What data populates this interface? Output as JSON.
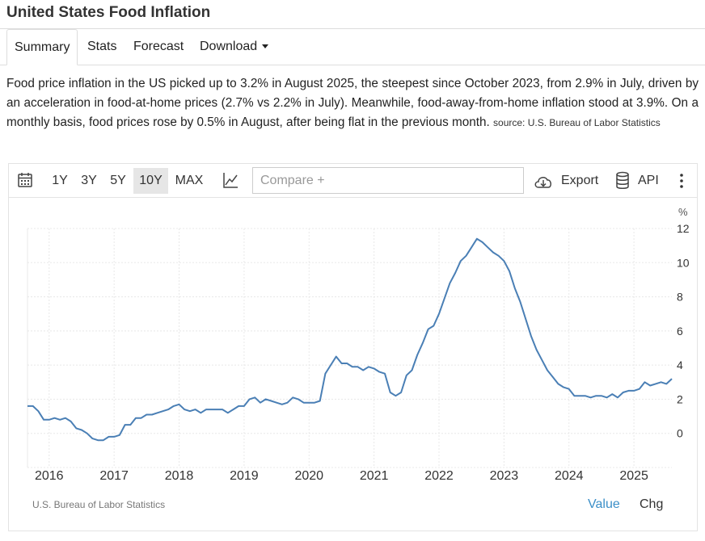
{
  "header": {
    "title": "United States Food Inflation"
  },
  "tabs": [
    {
      "label": "Summary"
    },
    {
      "label": "Stats"
    },
    {
      "label": "Forecast"
    },
    {
      "label": "Download"
    }
  ],
  "summary": {
    "text": "Food price inflation in the US picked up to 3.2% in August 2025, the steepest since October 2023, from 2.9% in July, driven by an acceleration in food-at-home prices (2.7% vs 2.2% in July). Meanwhile, food-away-from-home inflation stood at 3.9%. On a monthly basis, food prices rose by 0.5% in August, after being flat in the previous month.",
    "source": "source: U.S. Bureau of Labor Statistics"
  },
  "toolbar": {
    "ranges": [
      "1Y",
      "3Y",
      "5Y",
      "10Y",
      "MAX"
    ],
    "selected_range": "10Y",
    "compare_placeholder": "Compare +",
    "export_label": "Export",
    "api_label": "API",
    "icons": [
      "calendar-icon",
      "line-chart-icon",
      "cloud-download-icon",
      "database-icon",
      "more-vertical-icon"
    ]
  },
  "footer": {
    "source": "U.S. Bureau of Labor Statistics",
    "value_label": "Value",
    "chg_label": "Chg"
  },
  "colors": {
    "line": "#4a7fb5",
    "accent": "#3b8fc8",
    "grid": "#e8e8e8"
  },
  "chart_data": {
    "type": "line",
    "ylabel": "%",
    "ylim": [
      -2,
      12
    ],
    "yticks": [
      0,
      2,
      4,
      6,
      8,
      10,
      12
    ],
    "xticks": [
      "2016",
      "2017",
      "2018",
      "2019",
      "2020",
      "2021",
      "2022",
      "2023",
      "2024",
      "2025"
    ],
    "xrange": [
      "2015-09",
      "2025-08"
    ],
    "grid": true,
    "legend": "none",
    "series": [
      {
        "x": [
          "2015-09",
          "2015-10",
          "2015-11",
          "2015-12",
          "2016-01",
          "2016-02",
          "2016-03",
          "2016-04",
          "2016-05",
          "2016-06",
          "2016-07",
          "2016-08",
          "2016-09",
          "2016-10",
          "2016-11",
          "2016-12",
          "2017-01",
          "2017-02",
          "2017-03",
          "2017-04",
          "2017-05",
          "2017-06",
          "2017-07",
          "2017-08",
          "2017-09",
          "2017-10",
          "2017-11",
          "2017-12",
          "2018-01",
          "2018-02",
          "2018-03",
          "2018-04",
          "2018-05",
          "2018-06",
          "2018-07",
          "2018-08",
          "2018-09",
          "2018-10",
          "2018-11",
          "2018-12",
          "2019-01",
          "2019-02",
          "2019-03",
          "2019-04",
          "2019-05",
          "2019-06",
          "2019-07",
          "2019-08",
          "2019-09",
          "2019-10",
          "2019-11",
          "2019-12",
          "2020-01",
          "2020-02",
          "2020-03",
          "2020-04",
          "2020-05",
          "2020-06",
          "2020-07",
          "2020-08",
          "2020-09",
          "2020-10",
          "2020-11",
          "2020-12",
          "2021-01",
          "2021-02",
          "2021-03",
          "2021-04",
          "2021-05",
          "2021-06",
          "2021-07",
          "2021-08",
          "2021-09",
          "2021-10",
          "2021-11",
          "2021-12",
          "2022-01",
          "2022-02",
          "2022-03",
          "2022-04",
          "2022-05",
          "2022-06",
          "2022-07",
          "2022-08",
          "2022-09",
          "2022-10",
          "2022-11",
          "2022-12",
          "2023-01",
          "2023-02",
          "2023-03",
          "2023-04",
          "2023-05",
          "2023-06",
          "2023-07",
          "2023-08",
          "2023-09",
          "2023-10",
          "2023-11",
          "2023-12",
          "2024-01",
          "2024-02",
          "2024-03",
          "2024-04",
          "2024-05",
          "2024-06",
          "2024-07",
          "2024-08",
          "2024-09",
          "2024-10",
          "2024-11",
          "2024-12",
          "2025-01",
          "2025-02",
          "2025-03",
          "2025-04",
          "2025-05",
          "2025-06",
          "2025-07",
          "2025-08"
        ],
        "values": [
          1.6,
          1.6,
          1.3,
          0.8,
          0.8,
          0.9,
          0.8,
          0.9,
          0.7,
          0.3,
          0.2,
          0.0,
          -0.3,
          -0.4,
          -0.4,
          -0.2,
          -0.2,
          -0.1,
          0.5,
          0.5,
          0.9,
          0.9,
          1.1,
          1.1,
          1.2,
          1.3,
          1.4,
          1.6,
          1.7,
          1.4,
          1.3,
          1.4,
          1.2,
          1.4,
          1.4,
          1.4,
          1.4,
          1.2,
          1.4,
          1.6,
          1.6,
          2.0,
          2.1,
          1.8,
          2.0,
          1.9,
          1.8,
          1.7,
          1.8,
          2.1,
          2.0,
          1.8,
          1.8,
          1.8,
          1.9,
          3.5,
          4.0,
          4.5,
          4.1,
          4.1,
          3.9,
          3.9,
          3.7,
          3.9,
          3.8,
          3.6,
          3.5,
          2.4,
          2.2,
          2.4,
          3.4,
          3.7,
          4.6,
          5.3,
          6.1,
          6.3,
          7.0,
          7.9,
          8.8,
          9.4,
          10.1,
          10.4,
          10.9,
          11.4,
          11.2,
          10.9,
          10.6,
          10.4,
          10.1,
          9.5,
          8.5,
          7.7,
          6.7,
          5.7,
          4.9,
          4.3,
          3.7,
          3.3,
          2.9,
          2.7,
          2.6,
          2.2,
          2.2,
          2.2,
          2.1,
          2.2,
          2.2,
          2.1,
          2.3,
          2.1,
          2.4,
          2.5,
          2.5,
          2.6,
          3.0,
          2.8,
          2.9,
          3.0,
          2.9,
          3.2
        ]
      }
    ]
  }
}
